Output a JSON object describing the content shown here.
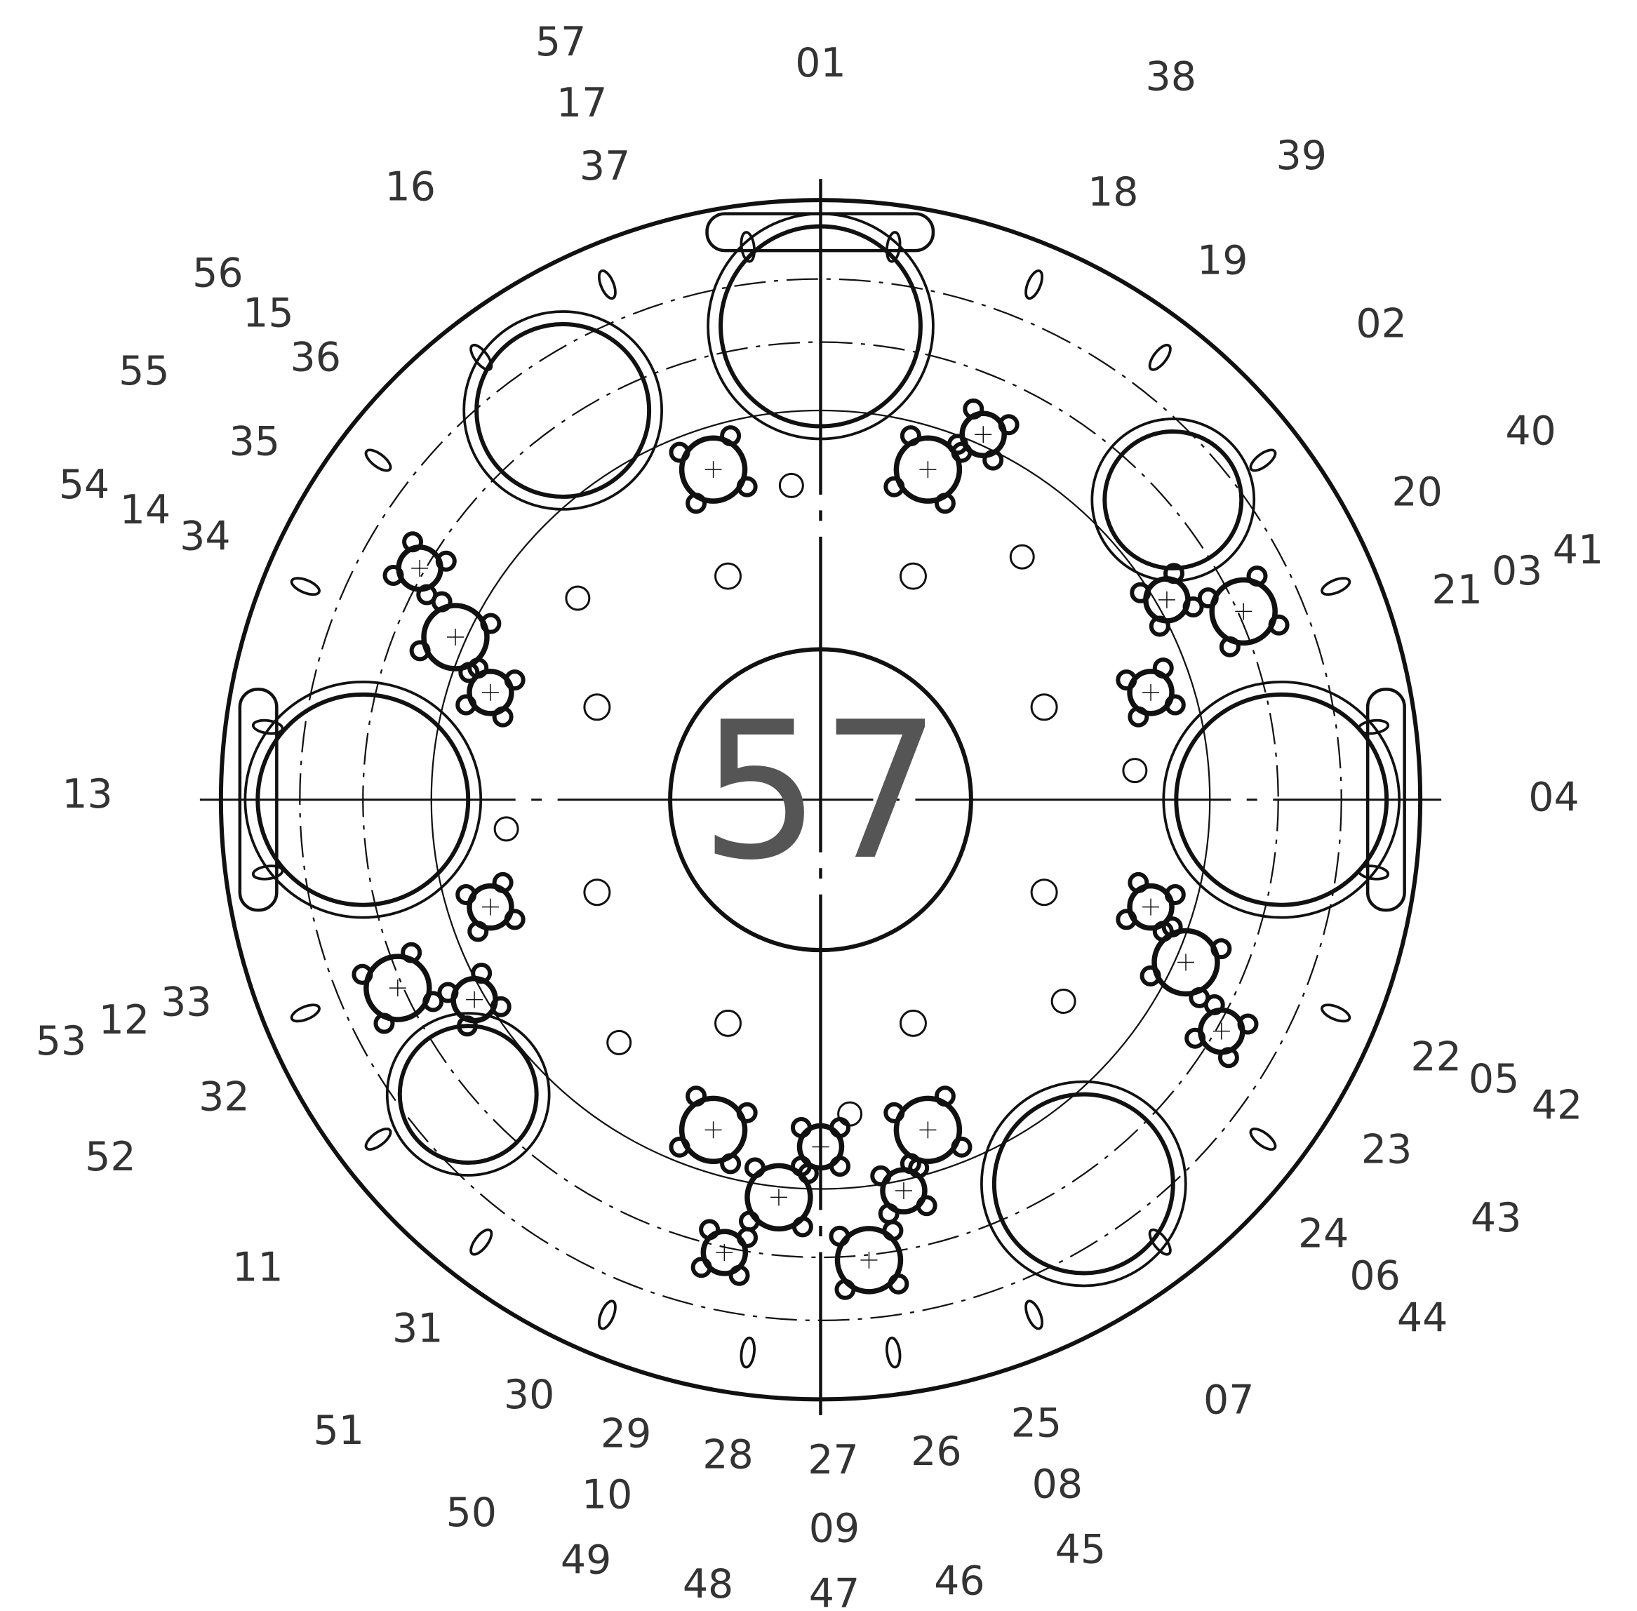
{
  "labels": [
    "01",
    "02",
    "03",
    "04",
    "05",
    "06",
    "07",
    "08",
    "09",
    "10",
    "11",
    "12",
    "13",
    "14",
    "15",
    "16",
    "17",
    "18",
    "19",
    "20",
    "21",
    "22",
    "23",
    "24",
    "25",
    "26",
    "27",
    "28",
    "29",
    "30",
    "31",
    "32",
    "33",
    "34",
    "35",
    "36",
    "37",
    "38",
    "39",
    "40",
    "41",
    "42",
    "43",
    "44",
    "45",
    "46",
    "47",
    "48",
    "49",
    "50",
    "51",
    "52",
    "53",
    "54",
    "55",
    "56",
    "57"
  ],
  "center_label": "57"
}
